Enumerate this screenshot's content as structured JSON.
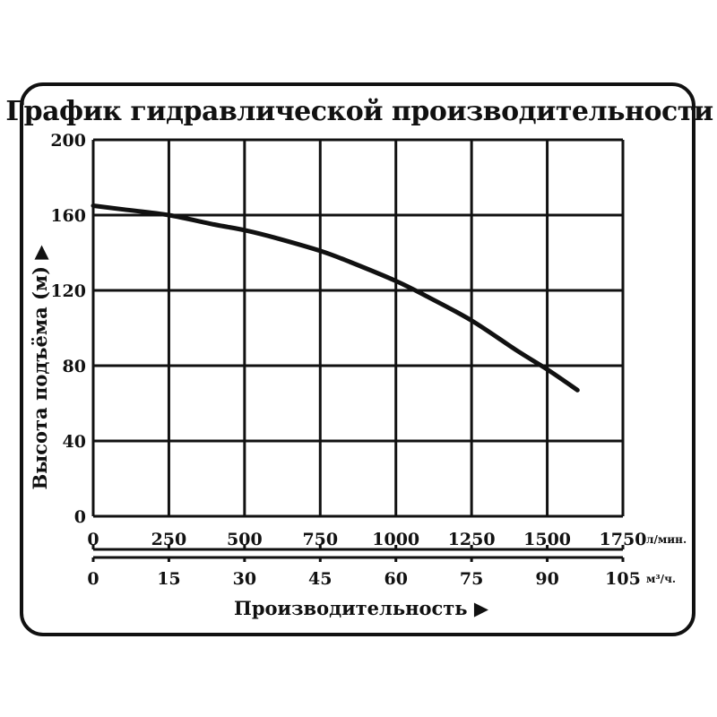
{
  "chart_data": {
    "type": "line",
    "title": "График гидравлической производительности",
    "ylabel": "Высота подъёма (м) ▶",
    "xlabel": "Производительность ▶",
    "ylim": [
      0,
      200
    ],
    "xlim": [
      0,
      1750
    ],
    "yticks": [
      "0",
      "40",
      "80",
      "120",
      "160",
      "200"
    ],
    "xticks_primary": [
      "0",
      "250",
      "500",
      "750",
      "1000",
      "1250",
      "1500",
      "1750"
    ],
    "x_unit_primary": "л/мин.",
    "xticks_secondary": [
      "0",
      "15",
      "30",
      "45",
      "60",
      "75",
      "90",
      "105"
    ],
    "x_unit_secondary": "м³/ч.",
    "grid": true,
    "series": [
      {
        "color": "#111111",
        "x": [
          0,
          100,
          250,
          400,
          500,
          600,
          750,
          850,
          1000,
          1100,
          1250,
          1400,
          1500,
          1600
        ],
        "y": [
          165,
          163,
          160,
          155,
          152,
          148,
          141,
          135,
          125,
          117,
          104,
          88,
          78,
          67
        ]
      }
    ]
  }
}
